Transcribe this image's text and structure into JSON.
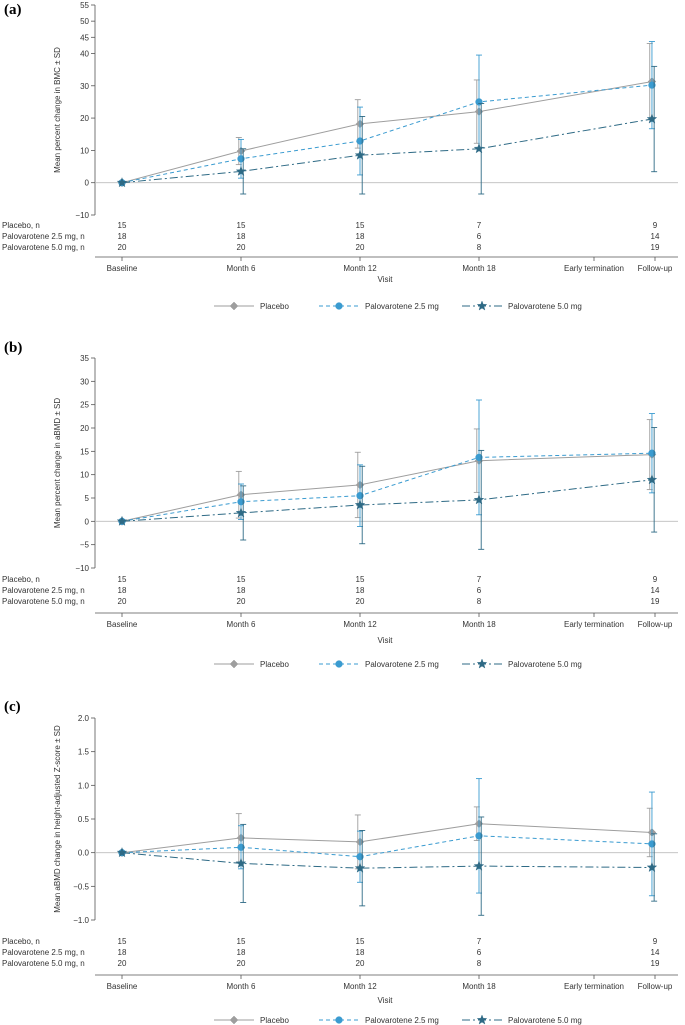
{
  "chart_data": [
    {
      "type": "line",
      "panel_label": "(a)",
      "ylabel": "Mean percent change in BMC ± SD",
      "xlabel": "Visit",
      "ylim": [
        -10,
        55
      ],
      "yticks": [
        -10,
        0,
        10,
        20,
        30,
        40,
        45,
        50,
        55
      ],
      "ytick_labels": [
        "−10",
        "0",
        "10",
        "20",
        "30",
        "40",
        "45",
        "50",
        "55"
      ],
      "categories": [
        "Baseline",
        "Month 6",
        "Month 12",
        "Month 18",
        "Early termination",
        "Follow-up"
      ],
      "series": [
        {
          "name": "Placebo",
          "x": [
            0,
            1,
            2,
            3,
            4.95
          ],
          "values": [
            0,
            9.8,
            18.2,
            22.0,
            31.3
          ],
          "err": [
            0,
            4.2,
            7.5,
            9.8,
            11.8
          ]
        },
        {
          "name": "Palovarotene 2.5 mg",
          "x": [
            0,
            1,
            2,
            3,
            4.95
          ],
          "values": [
            0,
            7.4,
            12.9,
            25.0,
            30.2
          ],
          "err": [
            0,
            6.0,
            10.5,
            14.5,
            13.5
          ]
        },
        {
          "name": "Palovarotene 5.0 mg",
          "x": [
            0,
            1,
            2,
            3,
            4.95
          ],
          "values": [
            0,
            3.5,
            8.5,
            10.5,
            19.7
          ],
          "err": [
            0,
            7.0,
            12.0,
            14.0,
            16.3
          ]
        }
      ],
      "n_table": [
        {
          "label": "Placebo, n",
          "values": [
            "15",
            "15",
            "15",
            "7",
            "9"
          ]
        },
        {
          "label": "Palovarotene 2.5 mg, n",
          "values": [
            "18",
            "18",
            "18",
            "6",
            "14"
          ]
        },
        {
          "label": "Palovarotene 5.0 mg, n",
          "values": [
            "20",
            "20",
            "20",
            "8",
            "19"
          ]
        }
      ],
      "legend": [
        "Placebo",
        "Palovarotene 2.5 mg",
        "Palovarotene 5.0 mg"
      ]
    },
    {
      "type": "line",
      "panel_label": "(b)",
      "ylabel": "Mean percent change in aBMD ± SD",
      "xlabel": "Visit",
      "ylim": [
        -10,
        35
      ],
      "yticks": [
        -10,
        -5,
        0,
        5,
        10,
        15,
        20,
        25,
        30,
        35
      ],
      "ytick_labels": [
        "−10",
        "−5",
        "0",
        "5",
        "10",
        "15",
        "20",
        "25",
        "30",
        "35"
      ],
      "categories": [
        "Baseline",
        "Month 6",
        "Month 12",
        "Month 18",
        "Early termination",
        "Follow-up"
      ],
      "series": [
        {
          "name": "Placebo",
          "x": [
            0,
            1,
            2,
            3,
            4.95
          ],
          "values": [
            0,
            5.7,
            7.8,
            13.0,
            14.3
          ],
          "err": [
            0,
            5.0,
            7.0,
            6.8,
            7.5
          ]
        },
        {
          "name": "Palovarotene 2.5 mg",
          "x": [
            0,
            1,
            2,
            3,
            4.95
          ],
          "values": [
            0,
            4.2,
            5.5,
            13.7,
            14.6
          ],
          "err": [
            0,
            3.8,
            6.6,
            12.3,
            8.5
          ]
        },
        {
          "name": "Palovarotene 5.0 mg",
          "x": [
            0,
            1,
            2,
            3,
            4.95
          ],
          "values": [
            0,
            1.8,
            3.5,
            4.6,
            8.9
          ],
          "err": [
            0,
            5.8,
            8.3,
            10.6,
            11.2
          ]
        }
      ],
      "n_table": [
        {
          "label": "Placebo, n",
          "values": [
            "15",
            "15",
            "15",
            "7",
            "9"
          ]
        },
        {
          "label": "Palovarotene 2.5 mg, n",
          "values": [
            "18",
            "18",
            "18",
            "6",
            "14"
          ]
        },
        {
          "label": "Palovarotene 5.0 mg, n",
          "values": [
            "20",
            "20",
            "20",
            "8",
            "19"
          ]
        }
      ],
      "legend": [
        "Placebo",
        "Palovarotene 2.5 mg",
        "Palovarotene 5.0 mg"
      ]
    },
    {
      "type": "line",
      "panel_label": "(c)",
      "ylabel": "Mean aBMD change in height-adjusted Z-score ± SD",
      "xlabel": "Visit",
      "ylim": [
        -1.0,
        2.0
      ],
      "yticks": [
        -1.0,
        -0.5,
        0.0,
        0.5,
        1.0,
        1.5,
        2.0
      ],
      "ytick_labels": [
        "−1.0",
        "−0.5",
        "0.0",
        "0.5",
        "1.0",
        "1.5",
        "2.0"
      ],
      "categories": [
        "Baseline",
        "Month 6",
        "Month 12",
        "Month 18",
        "Early termination",
        "Follow-up"
      ],
      "series": [
        {
          "name": "Placebo",
          "x": [
            0,
            1,
            2,
            3,
            4.95
          ],
          "values": [
            0,
            0.22,
            0.16,
            0.43,
            0.3
          ],
          "err": [
            0,
            0.36,
            0.4,
            0.25,
            0.36
          ]
        },
        {
          "name": "Palovarotene 2.5 mg",
          "x": [
            0,
            1,
            2,
            3,
            4.95
          ],
          "values": [
            0,
            0.08,
            -0.06,
            0.25,
            0.13
          ],
          "err": [
            0,
            0.32,
            0.38,
            0.85,
            0.77
          ]
        },
        {
          "name": "Palovarotene 5.0 mg",
          "x": [
            0,
            1,
            2,
            3,
            4.95
          ],
          "values": [
            0,
            -0.16,
            -0.23,
            -0.2,
            -0.22
          ],
          "err": [
            0,
            0.58,
            0.56,
            0.73,
            0.5
          ]
        }
      ],
      "n_table": [
        {
          "label": "Placebo, n",
          "values": [
            "15",
            "15",
            "15",
            "7",
            "9"
          ]
        },
        {
          "label": "Palovarotene 2.5 mg, n",
          "values": [
            "18",
            "18",
            "18",
            "6",
            "14"
          ]
        },
        {
          "label": "Palovarotene 5.0 mg, n",
          "values": [
            "20",
            "20",
            "20",
            "8",
            "19"
          ]
        }
      ],
      "legend": [
        "Placebo",
        "Palovarotene 2.5 mg",
        "Palovarotene 5.0 mg"
      ]
    }
  ],
  "colors": {
    "placebo": "#9e9e9e",
    "palo25": "#3a9bd0",
    "palo50": "#2e6a85"
  }
}
